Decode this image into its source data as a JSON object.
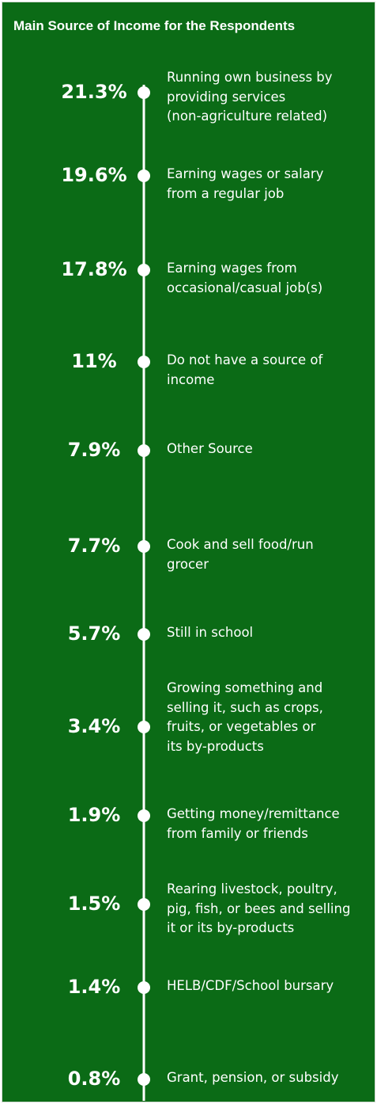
{
  "title": "Main Source of Income for the Respondents",
  "colors": {
    "background": "#0b6b16",
    "line": "#ffffff",
    "text": "#ffffff"
  },
  "chart_data": {
    "type": "timeline",
    "unit": "%",
    "items": [
      {
        "value": "21.3%",
        "label": "Running own business by\nproviding services\n(non-agriculture related)"
      },
      {
        "value": "19.6%",
        "label": "Earning wages or salary\nfrom a regular job"
      },
      {
        "value": "17.8%",
        "label": "Earning wages from\noccasional/casual job(s)"
      },
      {
        "value": "11%",
        "label": "Do not have a source of\nincome"
      },
      {
        "value": "7.9%",
        "label": "Other Source"
      },
      {
        "value": "7.7%",
        "label": "Cook and sell food/run\ngrocer"
      },
      {
        "value": "5.7%",
        "label": "Still in school"
      },
      {
        "value": "3.4%",
        "label": "Growing something and\nselling it, such as crops,\nfruits, or vegetables or\nits by-products"
      },
      {
        "value": "1.9%",
        "label": "Getting money/remittance\nfrom family or friends"
      },
      {
        "value": "1.5%",
        "label": "Rearing livestock, poultry,\npig, fish, or bees and selling\nit or its by-products"
      },
      {
        "value": "1.4%",
        "label": "HELB/CDF/School bursary"
      },
      {
        "value": "0.8%",
        "label": "Grant, pension, or subsidy"
      }
    ]
  }
}
